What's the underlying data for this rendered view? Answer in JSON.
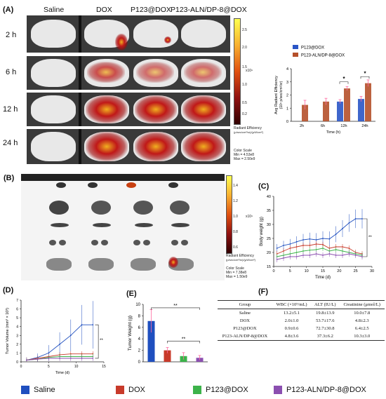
{
  "panels": {
    "A": "(A)",
    "B": "(B)",
    "C": "(C)",
    "D": "(D)",
    "E": "(E)",
    "F": "(F)"
  },
  "panelA": {
    "columns": [
      "Saline",
      "DOX",
      "P123@DOX",
      "P123-ALN/DP-8@DOX"
    ],
    "times": [
      "2 h",
      "6 h",
      "12 h",
      "24 h"
    ],
    "colorbar_ticks": [
      "2.5",
      "2.0",
      "1.5",
      "1.0",
      "0.5",
      "0.2"
    ],
    "colorbar_exp": "x10⁹",
    "colorbar_title": "Radiant Efficiency",
    "colorbar_units": "(p/sec/cm²/sr)/(μW/cm²)",
    "color_scale": "Color Scale",
    "color_min": "Min = 4.53e8",
    "color_max": "Max = 2.50e9"
  },
  "panelB": {
    "colorbar_ticks": [
      "1.4",
      "1.2",
      "1.0",
      "0.8",
      "0.6"
    ],
    "colorbar_exp": "x10⁹",
    "colorbar_title": "Radiant Efficiency",
    "colorbar_units": "(p/sec/cm²/sr)/(μW/cm²)",
    "color_scale": "Color Scale",
    "color_min": "Min = 7.38e8",
    "color_max": "Max = 1.50e9"
  },
  "colors": {
    "saline": "#1f4fbf",
    "dox": "#c83a2a",
    "p123": "#3cb34a",
    "aln": "#8b4fb0",
    "p123_bar": "#2a55c6",
    "aln_bar": "#b5502a"
  },
  "chart_data": [
    {
      "id": "A-bar",
      "type": "bar",
      "categories": [
        "2h",
        "6h",
        "12h",
        "24h"
      ],
      "series": [
        {
          "name": "P123@DOX",
          "values": [
            null,
            null,
            1.5,
            1.7
          ],
          "errors": [
            null,
            null,
            0.15,
            0.2
          ]
        },
        {
          "name": "P123-ALN/DP-8@DOX",
          "values": [
            1.25,
            1.5,
            2.5,
            2.9
          ],
          "errors": [
            0.35,
            0.25,
            0.15,
            0.25
          ]
        }
      ],
      "xlabel": "Time (h)",
      "ylabel": "Avg Radiant Efficiency",
      "ylabel2": "(10⁹ p/sec/cm²/sr)",
      "ylim": [
        0,
        4
      ],
      "yticks": [
        "0",
        "1",
        "2",
        "3",
        "4"
      ],
      "annotations": [
        "*",
        "*"
      ]
    },
    {
      "id": "C",
      "type": "line",
      "x": [
        1,
        3,
        5,
        7,
        9,
        11,
        13,
        15,
        17,
        19,
        21,
        23,
        25,
        27
      ],
      "series": [
        {
          "name": "Saline",
          "values": [
            21.5,
            22.5,
            23.0,
            23.8,
            24.5,
            24.8,
            24.5,
            25.0,
            24.8,
            26.5,
            28.5,
            30.5,
            32.0,
            32.0
          ]
        },
        {
          "name": "DOX",
          "values": [
            19.5,
            20.5,
            21.5,
            22.0,
            22.5,
            22.5,
            23.0,
            22.8,
            21.5,
            22.0,
            22.0,
            21.5,
            20.0,
            19.5
          ]
        },
        {
          "name": "P123@DOX",
          "values": [
            18.5,
            19.0,
            19.5,
            20.0,
            20.5,
            20.8,
            21.0,
            21.5,
            20.5,
            21.0,
            20.5,
            20.0,
            19.5,
            19.0
          ]
        },
        {
          "name": "P123-ALN/DP-8@DOX",
          "values": [
            17.5,
            18.0,
            18.5,
            18.5,
            19.0,
            19.0,
            19.5,
            19.0,
            19.5,
            19.0,
            19.0,
            19.5,
            19.0,
            18.5
          ]
        }
      ],
      "xlabel": "Time (d)",
      "ylabel": "Body weight (g)",
      "xlim": [
        0,
        30
      ],
      "ylim": [
        15,
        40
      ],
      "xticks": [
        "0",
        "5",
        "10",
        "15",
        "20",
        "25",
        "30"
      ],
      "yticks": [
        "15",
        "20",
        "25",
        "30",
        "35",
        "40"
      ],
      "annotations": [
        "**"
      ]
    },
    {
      "id": "D",
      "type": "line",
      "x": [
        1,
        3,
        5,
        7,
        9,
        11,
        13
      ],
      "series": [
        {
          "name": "Saline",
          "values": [
            0.2,
            0.5,
            1.0,
            2.0,
            3.0,
            4.2,
            4.2
          ]
        },
        {
          "name": "DOX",
          "values": [
            0.2,
            0.4,
            0.6,
            0.8,
            0.9,
            0.9,
            0.9
          ]
        },
        {
          "name": "P123@DOX",
          "values": [
            0.2,
            0.3,
            0.5,
            0.6,
            0.6,
            0.6,
            0.6
          ]
        },
        {
          "name": "P123-ALN/DP-8@DOX",
          "values": [
            0.2,
            0.3,
            0.4,
            0.4,
            0.4,
            0.4,
            0.4
          ]
        }
      ],
      "xlabel": "Time (d)",
      "ylabel": "Tumor Volume (mm³ × 10³)",
      "xlim": [
        0,
        15
      ],
      "ylim": [
        0,
        7
      ],
      "xticks": [
        "0",
        "5",
        "10",
        "15"
      ],
      "yticks": [
        "0",
        "1",
        "2",
        "3",
        "4",
        "5",
        "6",
        "7"
      ],
      "annotations": [
        "**"
      ]
    },
    {
      "id": "E",
      "type": "bar",
      "categories": [
        "Saline",
        "DOX",
        "P123@DOX",
        "P123-ALN/DP-8@DOX"
      ],
      "series": [
        {
          "name": "Tumor Weight",
          "values": [
            7.1,
            2.0,
            1.0,
            0.7
          ],
          "errors": [
            2.0,
            0.5,
            0.6,
            0.4
          ]
        }
      ],
      "ylabel": "Tumor Weight (g)",
      "ylim": [
        0,
        10
      ],
      "yticks": [
        "0",
        "2",
        "4",
        "6",
        "8",
        "10"
      ],
      "annotations": [
        "**",
        "**"
      ]
    },
    {
      "id": "F",
      "type": "table",
      "headers": [
        "Group",
        "WBC (×10⁹/mL)",
        "ALT (IU/L)",
        "Creatinine (μmol/L)"
      ],
      "rows": [
        [
          "Saline",
          "13.2±5.1",
          "19.8±13.9",
          "10.0±7.8"
        ],
        [
          "DOX",
          "2.0±1.0",
          "53.7±17.6",
          "4.8±2.3"
        ],
        [
          "P123@DOX",
          "0.9±0.6",
          "72.7±30.8",
          "6.4±2.5"
        ],
        [
          "P123-ALN/DP-8@DOX",
          "4.8±3.6",
          "37.3±6.2",
          "10.3±3.0"
        ]
      ]
    }
  ],
  "legend": [
    "Saline",
    "DOX",
    "P123@DOX",
    "P123-ALN/DP-8@DOX"
  ]
}
